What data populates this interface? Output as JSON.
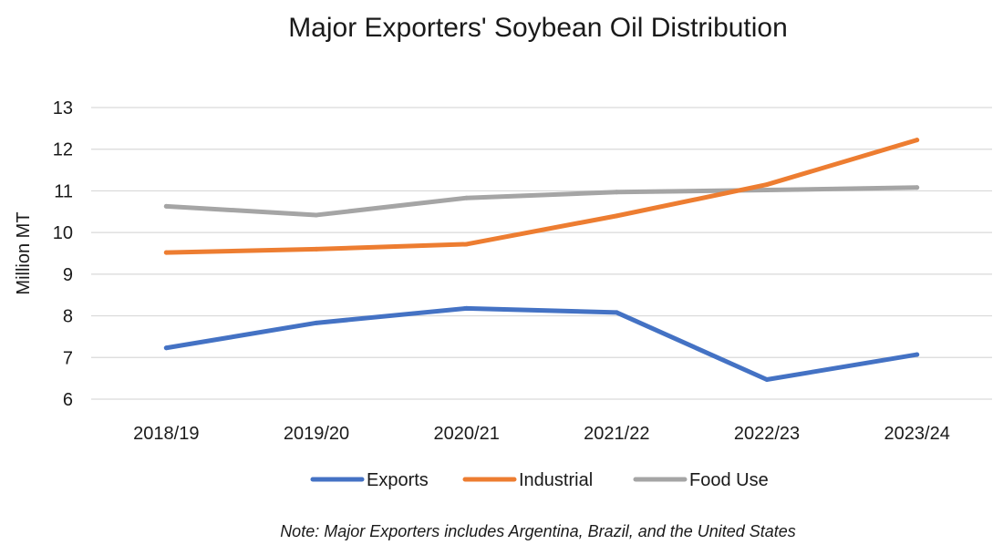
{
  "chart_data": {
    "type": "line",
    "title": "Major Exporters' Soybean Oil Distribution",
    "ylabel": "Million MT",
    "xlabel": "",
    "categories": [
      "2018/19",
      "2019/20",
      "2020/21",
      "2021/22",
      "2022/23",
      "2023/24"
    ],
    "ylim": [
      6,
      13
    ],
    "yticks": [
      6,
      7,
      8,
      9,
      10,
      11,
      12,
      13
    ],
    "grid": true,
    "legend_position": "bottom",
    "series": [
      {
        "name": "Exports",
        "color": "#4472C4",
        "values": [
          7.23,
          7.83,
          8.18,
          8.08,
          6.47,
          7.07
        ]
      },
      {
        "name": "Industrial",
        "color": "#ED7D31",
        "values": [
          9.52,
          9.6,
          9.72,
          10.4,
          11.15,
          12.22
        ]
      },
      {
        "name": "Food Use",
        "color": "#A5A5A5",
        "values": [
          10.63,
          10.42,
          10.83,
          10.97,
          11.02,
          11.08
        ]
      }
    ],
    "note": "Note: Major Exporters includes Argentina, Brazil, and the United States"
  }
}
